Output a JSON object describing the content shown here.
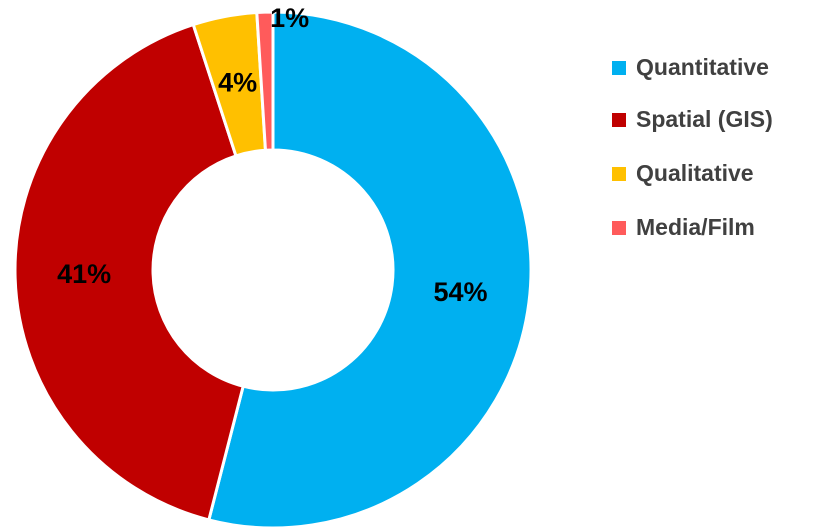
{
  "chart_data": {
    "type": "donut",
    "categories": [
      "Quantitative",
      "Spatial (GIS)",
      "Qualitative",
      "Media/Film"
    ],
    "values": [
      54,
      41,
      4,
      1
    ],
    "value_labels": [
      "54%",
      "41%",
      "4%",
      "1%"
    ],
    "colors": [
      "#00b0f0",
      "#c00000",
      "#ffc000",
      "#ff5b5b"
    ],
    "legend": "right"
  }
}
